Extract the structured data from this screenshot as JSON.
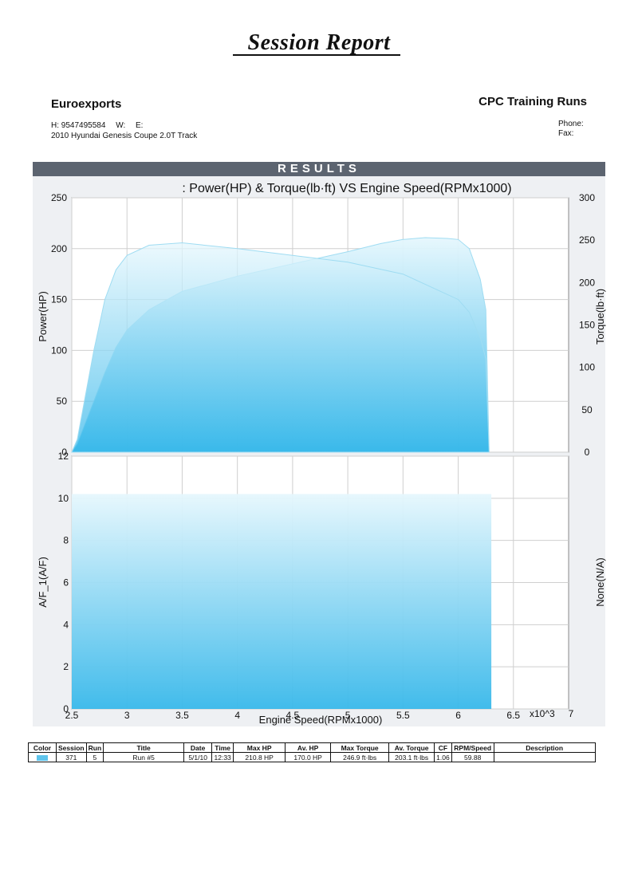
{
  "header": {
    "title": "Session Report",
    "company": "Euroexports",
    "session_name": "CPC Training Runs",
    "contact_h": "H:  9547495584",
    "contact_w": "W:",
    "contact_e": "E:",
    "vehicle": "2010 Hyundai Genesis Coupe 2.0T Track",
    "phone_label": "Phone:",
    "fax_label": "Fax:"
  },
  "results_label": "RESULTS",
  "chart_data": [
    {
      "type": "area",
      "title": ": Power(HP) & Torque(lb·ft) VS Engine Speed(RPMx1000)",
      "xlabel": "",
      "ylabel": "Power(HP)",
      "y2label": "Torque(lb·ft)",
      "xlim": [
        2.5,
        7
      ],
      "ylim": [
        0,
        250
      ],
      "y2lim": [
        0,
        300
      ],
      "yticks": [
        0,
        50,
        100,
        150,
        200,
        250
      ],
      "y2ticks": [
        0,
        50,
        100,
        150,
        200,
        250,
        300
      ],
      "grid": true,
      "colors": {
        "fill_top": "#e6f7fd",
        "fill_bottom": "#37b8ea",
        "line": "#9fdcf2"
      },
      "series": [
        {
          "axis": "left",
          "x": [
            2.5,
            2.55,
            2.6,
            2.7,
            2.8,
            2.9,
            3.0,
            3.2,
            3.5,
            4.0,
            4.5,
            5.0,
            5.3,
            5.5,
            5.7,
            5.9,
            6.0,
            6.1,
            6.2,
            6.25,
            6.28
          ],
          "values": [
            0,
            8,
            22,
            50,
            78,
            103,
            120,
            140,
            158,
            173,
            185,
            197,
            205,
            209,
            210.8,
            210,
            209,
            200,
            170,
            140,
            0
          ]
        },
        {
          "axis": "right",
          "x": [
            2.5,
            2.55,
            2.6,
            2.7,
            2.8,
            2.9,
            3.0,
            3.2,
            3.5,
            4.0,
            4.5,
            5.0,
            5.5,
            6.0,
            6.1,
            6.2,
            6.25,
            6.28
          ],
          "values": [
            0,
            15,
            50,
            120,
            180,
            215,
            232,
            244,
            246.9,
            240,
            232,
            224,
            210,
            180,
            165,
            135,
            110,
            0
          ]
        }
      ]
    },
    {
      "type": "area",
      "xlabel": "Engine Speed(RPMx1000)",
      "ylabel": "A/F_1(A/F)",
      "y2label": "None(N/A)",
      "xlim": [
        2.5,
        7
      ],
      "ylim": [
        0,
        12
      ],
      "xticks": [
        "2.5",
        "3",
        "3.5",
        "4",
        "4.5",
        "5",
        "5.5",
        "6",
        "6.5"
      ],
      "x_tick_values": [
        2.5,
        3,
        3.5,
        4,
        4.5,
        5,
        5.5,
        6,
        6.5
      ],
      "x_multiplier": "x10^3",
      "x_last_tick": "7",
      "yticks": [
        0,
        2,
        4,
        6,
        8,
        10,
        12
      ],
      "grid": true,
      "colors": {
        "fill_top": "#e6f7fd",
        "fill_bottom": "#37b8ea"
      },
      "series": [
        {
          "axis": "left",
          "x": [
            2.5,
            6.3
          ],
          "values": [
            10.2,
            10.2
          ]
        }
      ]
    }
  ],
  "table": {
    "headers": [
      "Color",
      "Session",
      "Run",
      "Title",
      "Date",
      "Time",
      "Max HP",
      "Av. HP",
      "Max Torque",
      "Av. Torque",
      "CF",
      "RPM/Speed",
      "Description"
    ],
    "rows": [
      [
        "",
        "371",
        "5",
        "Run #5",
        "5/1/10",
        "12:33",
        "210.8 HP",
        "170.0 HP",
        "246.9 ft·lbs",
        "203.1 ft·lbs",
        "1.06",
        "59.88",
        ""
      ]
    ]
  }
}
